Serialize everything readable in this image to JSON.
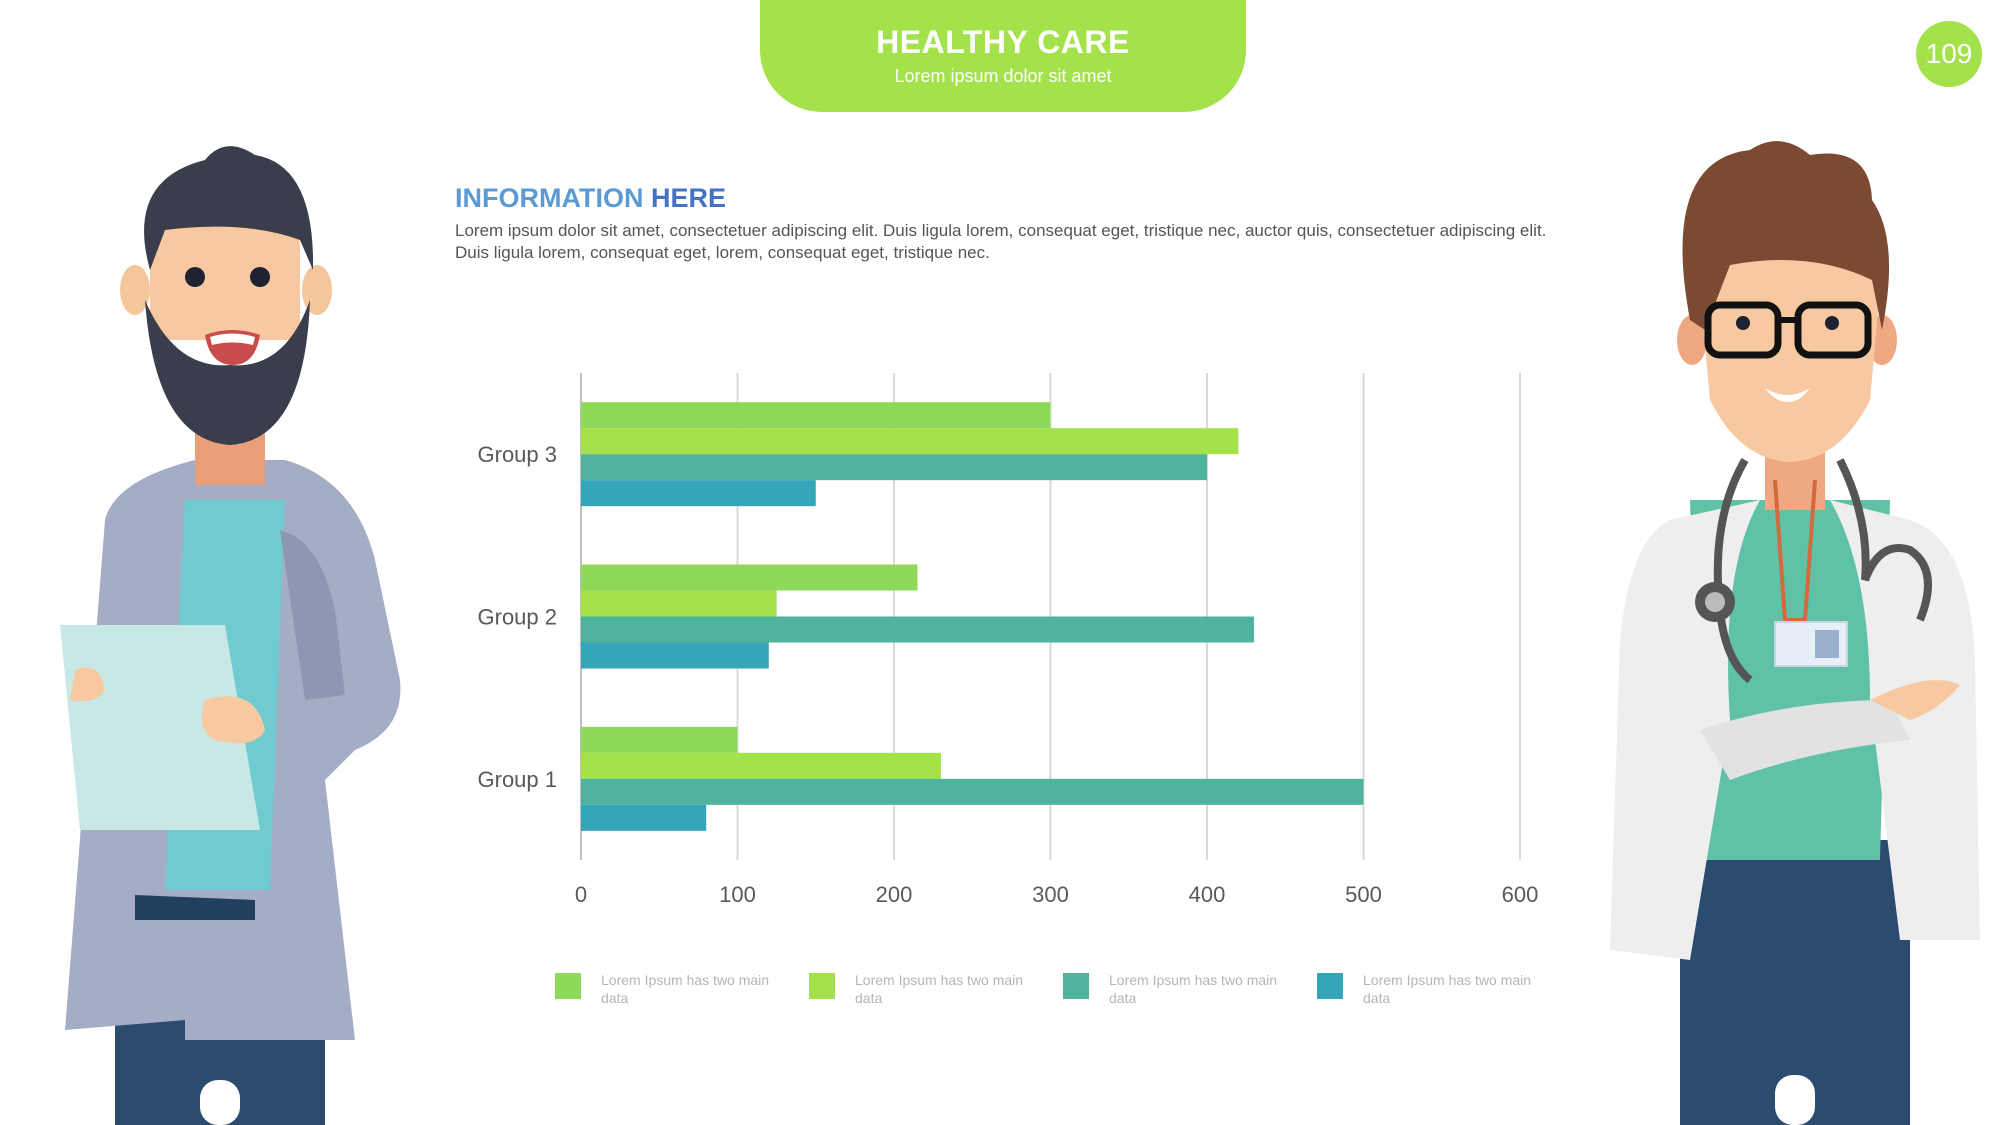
{
  "header": {
    "title": "HEALTHY CARE",
    "subtitle": "Lorem ipsum dolor sit amet"
  },
  "page_number": "109",
  "section": {
    "heading_light": "INFORMATION",
    "heading_bold": "HERE",
    "body": "Lorem ipsum dolor sit amet, consectetuer adipiscing elit. Duis ligula lorem, consequat eget, tristique nec, auctor quis, consectetuer adipiscing elit. Duis ligula lorem, consequat eget, lorem, consequat eget, tristique nec."
  },
  "colors": {
    "accent": "#a3e24a",
    "series1": "#8fd95a",
    "series2": "#a3e24a",
    "series3": "#4fb39e",
    "series4": "#35a6b9"
  },
  "chart_data": {
    "type": "bar",
    "orientation": "horizontal",
    "categories": [
      "Group 1",
      "Group 2",
      "Group 3"
    ],
    "series": [
      {
        "name": "Lorem Ipsum has two main data",
        "values": [
          100,
          215,
          300
        ]
      },
      {
        "name": "Lorem Ipsum has two main data",
        "values": [
          230,
          125,
          420
        ]
      },
      {
        "name": "Lorem Ipsum has two main data",
        "values": [
          500,
          430,
          400
        ]
      },
      {
        "name": "Lorem Ipsum has two main data",
        "values": [
          80,
          120,
          150
        ]
      }
    ],
    "xticks": [
      0,
      100,
      200,
      300,
      400,
      500,
      600
    ],
    "xlim": [
      0,
      600
    ],
    "grid": true,
    "legend_position": "bottom"
  }
}
